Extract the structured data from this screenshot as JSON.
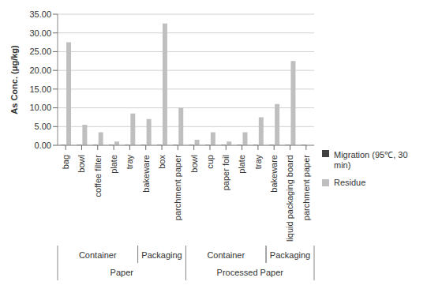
{
  "chart_data": {
    "type": "bar",
    "categories": [
      "bag",
      "bowl",
      "coffee filter",
      "plate",
      "tray",
      "bakeware",
      "box",
      "parchment paper",
      "bowl",
      "cup",
      "paper foil",
      "plate",
      "tray",
      "bakeware",
      "liquid packaging board",
      "parchment paper"
    ],
    "category_groups": [
      [
        "Container",
        "Container",
        "Container",
        "Container",
        "Container",
        "Packaging",
        "Packaging",
        "Packaging",
        "Container",
        "Container",
        "Container",
        "Container",
        "Container",
        "Packaging",
        "Packaging",
        "Packaging"
      ],
      [
        "Paper",
        "Paper",
        "Paper",
        "Paper",
        "Paper",
        "Paper",
        "Paper",
        "Paper",
        "Processed Paper",
        "Processed Paper",
        "Processed Paper",
        "Processed Paper",
        "Processed Paper",
        "Processed Paper",
        "Processed Paper",
        "Processed Paper"
      ]
    ],
    "series": [
      {
        "name": "Migration (95℃, 30 min)",
        "color": "#404040",
        "values": [
          0.1,
          0.1,
          0.1,
          0.1,
          0.1,
          0.1,
          0.1,
          0.1,
          0.1,
          0.1,
          0.1,
          0.1,
          0.1,
          0.1,
          0.1,
          0.1
        ]
      },
      {
        "name": "Residue",
        "color": "#bfbfbf",
        "values": [
          27.5,
          5.5,
          3.5,
          1.0,
          8.5,
          7.0,
          32.5,
          10.0,
          1.5,
          3.5,
          1.0,
          3.5,
          7.5,
          11.0,
          22.5,
          0
        ]
      }
    ],
    "y_label": "As Conc. (μg/kg)",
    "ylim": [
      0,
      35
    ],
    "yticks": [
      {
        "value": 0,
        "label": "0.00"
      },
      {
        "value": 5,
        "label": "5.00"
      },
      {
        "value": 10,
        "label": "10.00"
      },
      {
        "value": 15,
        "label": "15.00"
      },
      {
        "value": 20,
        "label": "20.00"
      },
      {
        "value": 25,
        "label": "25.00"
      },
      {
        "value": 30,
        "label": "30.00"
      },
      {
        "value": 35,
        "label": "35.00"
      }
    ],
    "grid": true,
    "legend": "right"
  }
}
